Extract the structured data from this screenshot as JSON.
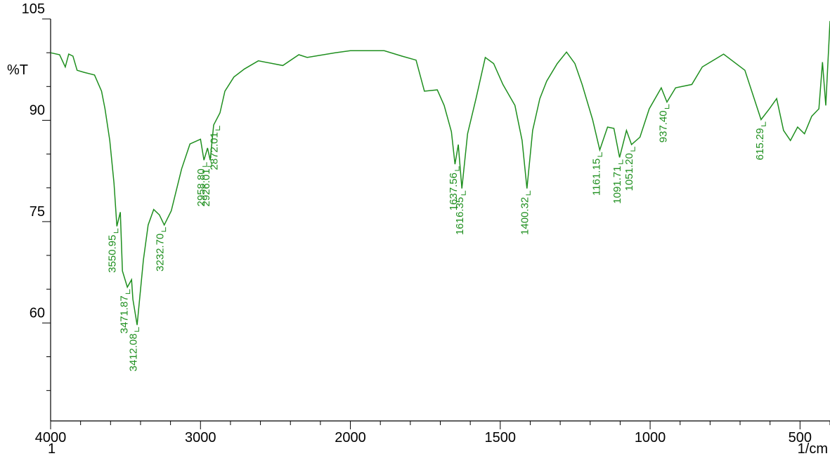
{
  "chart_data": {
    "type": "line",
    "y_label": "%T",
    "x_label": "1/cm",
    "xlim": [
      4000,
      400
    ],
    "x_scale_break": 2000,
    "ylim": [
      45.5,
      105
    ],
    "xticks": [
      4000,
      3000,
      2000,
      1500,
      1000,
      500
    ],
    "xminor_ticks": [
      3800,
      3600,
      3400,
      3200,
      2800,
      2600,
      2400,
      2200,
      1900,
      1800,
      1700,
      1600,
      1400,
      1300,
      1200,
      1100,
      900,
      800,
      700,
      600,
      400
    ],
    "yticks": [
      105,
      90,
      75,
      60
    ],
    "yminor_ticks": [
      100,
      95,
      85,
      80,
      70,
      65,
      55,
      50
    ],
    "series": [
      {
        "name": "1",
        "color": "#1f8f1f",
        "x": [
          4000,
          3940,
          3902,
          3879,
          3851,
          3823,
          3777,
          3707,
          3660,
          3637,
          3605,
          3577,
          3558,
          3535,
          3521,
          3488,
          3460,
          3451,
          3423,
          3381,
          3349,
          3312,
          3274,
          3242,
          3195,
          3126,
          3070,
          3000,
          2977,
          2953,
          2935,
          2912,
          2870,
          2837,
          2777,
          2707,
          2614,
          2451,
          2344,
          2288,
          2102,
          2000,
          1887,
          1828,
          1781,
          1753,
          1710,
          1687,
          1663,
          1651,
          1640,
          1628,
          1609,
          1581,
          1550,
          1522,
          1491,
          1451,
          1427,
          1411,
          1392,
          1368,
          1345,
          1310,
          1279,
          1251,
          1227,
          1192,
          1168,
          1142,
          1121,
          1102,
          1079,
          1062,
          1034,
          1003,
          963,
          944,
          915,
          861,
          826,
          755,
          684,
          630,
          602,
          578,
          555,
          532,
          508,
          485,
          461,
          437,
          425,
          414,
          400
        ],
        "values": [
          100,
          99.7,
          97.9,
          99.8,
          99.5,
          97.4,
          97.1,
          96.7,
          94.3,
          91.7,
          87,
          80.7,
          74.3,
          76.4,
          67.7,
          65.3,
          66.4,
          63.5,
          59.7,
          69.3,
          74.5,
          76.8,
          76,
          74.5,
          76.6,
          82.8,
          86.5,
          87.2,
          84.1,
          85.9,
          84.1,
          89.3,
          91.1,
          94.3,
          96.4,
          97.6,
          98.8,
          98.1,
          99.7,
          99.3,
          100,
          100.3,
          100.3,
          99.5,
          98.9,
          94.3,
          94.5,
          92.2,
          88.3,
          83.5,
          86.4,
          79.9,
          88,
          93.2,
          99.3,
          98.4,
          95.3,
          92.2,
          87,
          79.9,
          88.5,
          93.2,
          95.8,
          98.4,
          100.1,
          98.4,
          95.3,
          90.1,
          85.6,
          89,
          88.8,
          84.5,
          88.5,
          86.4,
          87.5,
          91.7,
          94.8,
          92.7,
          94.8,
          95.3,
          97.9,
          99.8,
          97.4,
          90.1,
          91.7,
          93.2,
          88.5,
          87,
          89,
          88,
          90.6,
          91.7,
          98.6,
          92.2,
          104.7
        ]
      }
    ],
    "peaks": [
      {
        "x": 3550.95,
        "y": 74.3
      },
      {
        "x": 3471.87,
        "y": 65.3
      },
      {
        "x": 3412.08,
        "y": 59.7
      },
      {
        "x": 3232.7,
        "label": "3232.70",
        "y": 74.5
      },
      {
        "x": 2958.8,
        "label": "2958.80",
        "y": 84.1
      },
      {
        "x": 2926.01,
        "y": 84.1
      },
      {
        "x": 2872.01,
        "y": 89.5
      },
      {
        "x": 1637.56,
        "y": 83.5
      },
      {
        "x": 1616.35,
        "y": 79.9
      },
      {
        "x": 1400.32,
        "y": 79.9
      },
      {
        "x": 1161.15,
        "y": 85.6
      },
      {
        "x": 1091.71,
        "y": 84.5
      },
      {
        "x": 1051.2,
        "label": "1051.20",
        "y": 86.4
      },
      {
        "x": 937.4,
        "label": "937.40",
        "y": 92.7
      },
      {
        "x": 615.29,
        "y": 90.1
      }
    ]
  }
}
